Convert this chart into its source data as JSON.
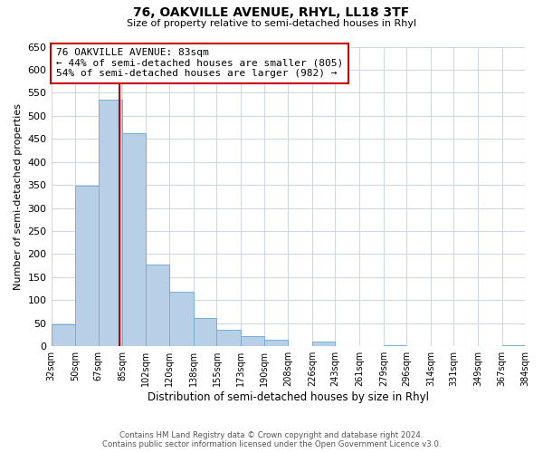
{
  "title": "76, OAKVILLE AVENUE, RHYL, LL18 3TF",
  "subtitle": "Size of property relative to semi-detached houses in Rhyl",
  "xlabel": "Distribution of semi-detached houses by size in Rhyl",
  "ylabel": "Number of semi-detached properties",
  "bin_edges": [
    32,
    50,
    67,
    85,
    102,
    120,
    138,
    155,
    173,
    190,
    208,
    226,
    243,
    261,
    279,
    296,
    314,
    331,
    349,
    367,
    384
  ],
  "bin_labels": [
    "32sqm",
    "50sqm",
    "67sqm",
    "85sqm",
    "102sqm",
    "120sqm",
    "138sqm",
    "155sqm",
    "173sqm",
    "190sqm",
    "208sqm",
    "226sqm",
    "243sqm",
    "261sqm",
    "279sqm",
    "296sqm",
    "314sqm",
    "331sqm",
    "349sqm",
    "367sqm",
    "384sqm"
  ],
  "counts": [
    47,
    348,
    535,
    463,
    178,
    118,
    61,
    35,
    22,
    15,
    0,
    10,
    0,
    0,
    2,
    0,
    0,
    0,
    0,
    3
  ],
  "bar_color": "#b8cfe8",
  "bar_edgecolor": "#7aadd4",
  "property_line_x": 83,
  "pct_smaller": 44,
  "n_smaller": 805,
  "pct_larger": 54,
  "n_larger": 982,
  "vline_color": "#cc0000",
  "annotation_box_edgecolor": "#cc0000",
  "ylim": [
    0,
    650
  ],
  "yticks": [
    0,
    50,
    100,
    150,
    200,
    250,
    300,
    350,
    400,
    450,
    500,
    550,
    600,
    650
  ],
  "footer_line1": "Contains HM Land Registry data © Crown copyright and database right 2024.",
  "footer_line2": "Contains public sector information licensed under the Open Government Licence v3.0.",
  "background_color": "#ffffff",
  "grid_color": "#d0d8e8"
}
